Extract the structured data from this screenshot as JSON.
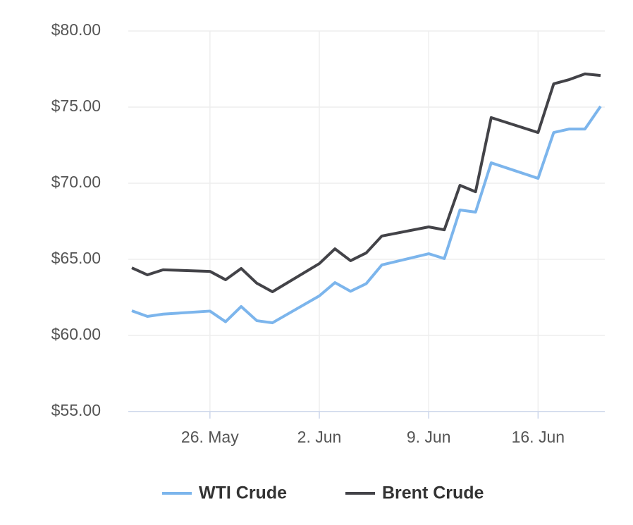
{
  "chart_data": {
    "type": "line",
    "x": [
      "05-21",
      "05-22",
      "05-23",
      "05-26",
      "05-27",
      "05-28",
      "05-29",
      "05-30",
      "06-02",
      "06-03",
      "06-04",
      "06-05",
      "06-06",
      "06-09",
      "06-10",
      "06-11",
      "06-12",
      "06-13",
      "06-16",
      "06-17",
      "06-18",
      "06-19",
      "06-20"
    ],
    "series": [
      {
        "name": "WTI Crude",
        "color": "#7cb5ec",
        "values": [
          61.62,
          61.25,
          61.4,
          61.6,
          60.9,
          61.9,
          60.97,
          60.83,
          62.6,
          63.47,
          62.9,
          63.4,
          64.63,
          65.37,
          65.05,
          68.24,
          68.1,
          71.34,
          70.32,
          73.33,
          73.56,
          73.56,
          75.05
        ]
      },
      {
        "name": "Brent Crude",
        "color": "#434348",
        "values": [
          64.44,
          63.98,
          64.31,
          64.21,
          63.66,
          64.4,
          63.43,
          62.87,
          64.72,
          65.69,
          64.91,
          65.42,
          66.53,
          67.13,
          66.94,
          69.86,
          69.44,
          74.31,
          73.33,
          76.53,
          76.81,
          77.18,
          77.08
        ]
      }
    ],
    "xlim": [
      "05-21",
      "06-20"
    ],
    "xticks": [
      {
        "value": "05-26",
        "label": "26. May"
      },
      {
        "value": "06-02",
        "label": "2. Jun"
      },
      {
        "value": "06-09",
        "label": "9. Jun"
      },
      {
        "value": "06-16",
        "label": "16. Jun"
      }
    ],
    "ylim": [
      55,
      80
    ],
    "yticks": [
      {
        "value": 55,
        "label": "$55.00"
      },
      {
        "value": 60,
        "label": "$60.00"
      },
      {
        "value": 65,
        "label": "$65.00"
      },
      {
        "value": 70,
        "label": "$70.00"
      },
      {
        "value": 75,
        "label": "$75.00"
      },
      {
        "value": 80,
        "label": "$80.00"
      }
    ],
    "grid": true,
    "legend": "bottom"
  }
}
